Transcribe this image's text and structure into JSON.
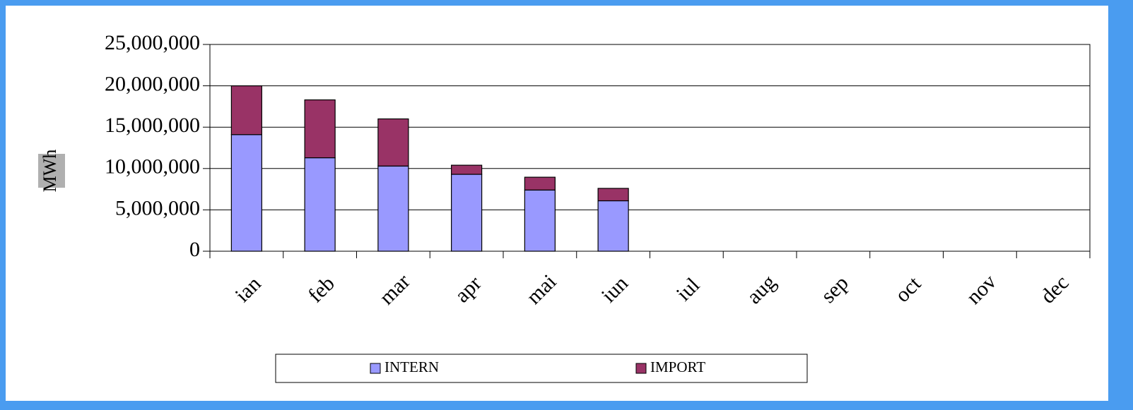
{
  "chart_data": {
    "type": "stacked_bar",
    "y_label": "MWh",
    "categories": [
      "ian",
      "feb",
      "mar",
      "apr",
      "mai",
      "iun",
      "iul",
      "aug",
      "sep",
      "oct",
      "nov",
      "dec"
    ],
    "series": [
      {
        "name": "INTERN",
        "color": "#9999ff",
        "values": [
          14100000,
          11300000,
          10300000,
          9300000,
          7400000,
          6100000,
          null,
          null,
          null,
          null,
          null,
          null
        ]
      },
      {
        "name": "IMPORT",
        "color": "#993366",
        "values": [
          5900000,
          7000000,
          5700000,
          1100000,
          1550000,
          1500000,
          null,
          null,
          null,
          null,
          null,
          null
        ]
      }
    ],
    "ylim": [
      0,
      25000000
    ],
    "yticks": [
      0,
      {
        "value": 5000000,
        "label": "5,000,000"
      },
      {
        "value": 10000000,
        "label": "10,000,000"
      },
      {
        "value": 15000000,
        "label": "15,000,000"
      },
      {
        "value": 20000000,
        "label": "20,000,000"
      },
      {
        "value": 25000000,
        "label": "25,000,000"
      }
    ],
    "grid": true,
    "legend": "bottom"
  }
}
